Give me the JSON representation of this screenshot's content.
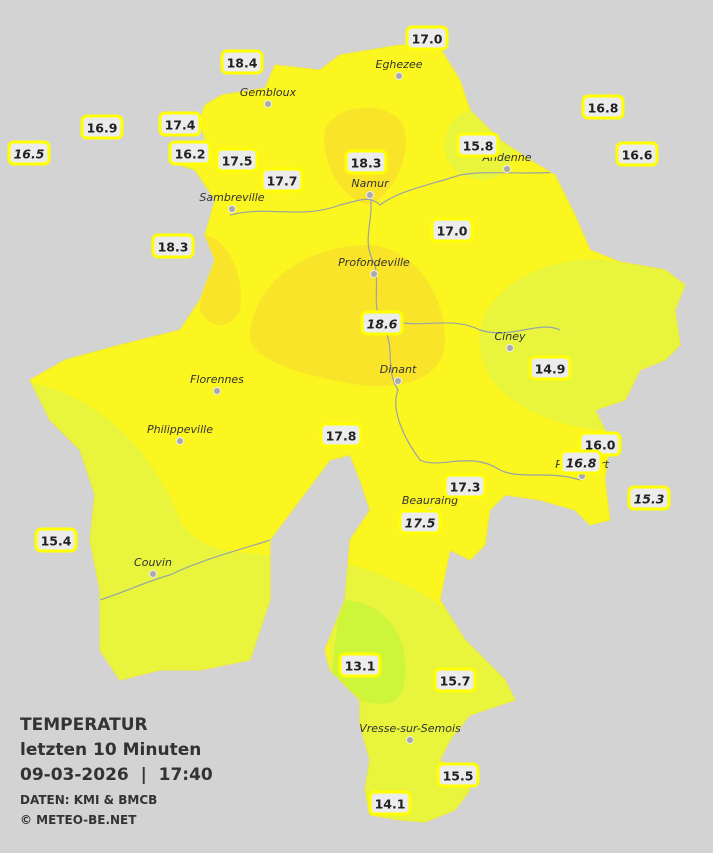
{
  "caption": {
    "title": "TEMPERATUR",
    "period": "letzten 10 Minuten",
    "timestamp": "09-03-2026  |  17:40",
    "source": "DATEN: KMI & BMCB",
    "copyright": "© METEO-BE.NET"
  },
  "cities": [
    "Eghezee",
    "Gembloux",
    "Andenne",
    "Namur",
    "Sambreville",
    "Profondeville",
    "Ciney",
    "Florennes",
    "Dinant",
    "Philippeville",
    "Rochefort",
    "Beauraing",
    "Couvin",
    "Vresse-sur-Semois"
  ],
  "readings": [
    {
      "text": "17.0",
      "italic": false
    },
    {
      "text": "18.4",
      "italic": false
    },
    {
      "text": "16.8",
      "italic": false
    },
    {
      "text": "16.9",
      "italic": false
    },
    {
      "text": "17.4",
      "italic": false
    },
    {
      "text": "15.8",
      "italic": false
    },
    {
      "text": "16.5",
      "italic": true
    },
    {
      "text": "16.2",
      "italic": false
    },
    {
      "text": "17.5",
      "italic": false
    },
    {
      "text": "16.6",
      "italic": false
    },
    {
      "text": "18.3",
      "italic": false
    },
    {
      "text": "17.7",
      "italic": false
    },
    {
      "text": "17.0",
      "italic": false
    },
    {
      "text": "18.3",
      "italic": false
    },
    {
      "text": "18.6",
      "italic": true
    },
    {
      "text": "14.9",
      "italic": false
    },
    {
      "text": "17.8",
      "italic": false
    },
    {
      "text": "16.0",
      "italic": false
    },
    {
      "text": "16.8",
      "italic": true
    },
    {
      "text": "17.3",
      "italic": false
    },
    {
      "text": "15.3",
      "italic": true
    },
    {
      "text": "17.5",
      "italic": true
    },
    {
      "text": "15.4",
      "italic": false
    },
    {
      "text": "13.1",
      "italic": false
    },
    {
      "text": "15.7",
      "italic": false
    },
    {
      "text": "15.5",
      "italic": false
    },
    {
      "text": "14.1",
      "italic": false
    }
  ]
}
